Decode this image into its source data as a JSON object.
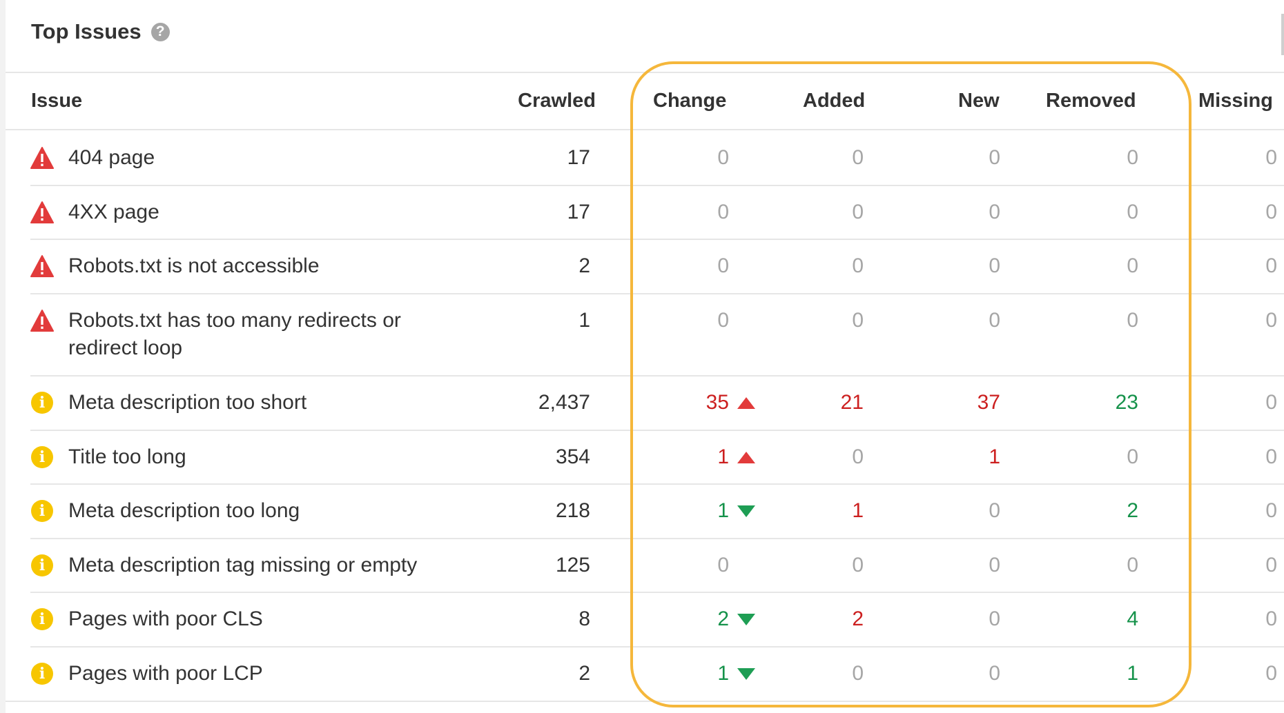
{
  "panel": {
    "title": "Top Issues",
    "help_icon": "help-circle-icon",
    "help_glyph": "?"
  },
  "columns": {
    "issue": "Issue",
    "crawled": "Crawled",
    "change": "Change",
    "added": "Added",
    "new": "New",
    "removed": "Removed",
    "missing": "Missing"
  },
  "rows": [
    {
      "severity": "error",
      "icon": "warning-triangle-icon",
      "issue": "404 page",
      "crawled": "17",
      "change": "0",
      "change_trend": "none",
      "added": "0",
      "new": "0",
      "removed": "0",
      "missing": "0"
    },
    {
      "severity": "error",
      "icon": "warning-triangle-icon",
      "issue": "4XX page",
      "crawled": "17",
      "change": "0",
      "change_trend": "none",
      "added": "0",
      "new": "0",
      "removed": "0",
      "missing": "0"
    },
    {
      "severity": "error",
      "icon": "warning-triangle-icon",
      "issue": "Robots.txt is not accessible",
      "crawled": "2",
      "change": "0",
      "change_trend": "none",
      "added": "0",
      "new": "0",
      "removed": "0",
      "missing": "0"
    },
    {
      "severity": "error",
      "icon": "warning-triangle-icon",
      "issue": "Robots.txt has too many redirects or redirect loop",
      "crawled": "1",
      "change": "0",
      "change_trend": "none",
      "added": "0",
      "new": "0",
      "removed": "0",
      "missing": "0"
    },
    {
      "severity": "notice",
      "icon": "info-circle-icon",
      "issue": "Meta description too short",
      "crawled": "2,437",
      "change": "35",
      "change_trend": "up",
      "added": "21",
      "new": "37",
      "removed": "23",
      "missing": "0"
    },
    {
      "severity": "notice",
      "icon": "info-circle-icon",
      "issue": "Title too long",
      "crawled": "354",
      "change": "1",
      "change_trend": "up",
      "added": "0",
      "new": "1",
      "removed": "0",
      "missing": "0"
    },
    {
      "severity": "notice",
      "icon": "info-circle-icon",
      "issue": "Meta description too long",
      "crawled": "218",
      "change": "1",
      "change_trend": "down",
      "added": "1",
      "new": "0",
      "removed": "2",
      "missing": "0"
    },
    {
      "severity": "notice",
      "icon": "info-circle-icon",
      "issue": "Meta description tag missing or empty",
      "crawled": "125",
      "change": "0",
      "change_trend": "none",
      "added": "0",
      "new": "0",
      "removed": "0",
      "missing": "0"
    },
    {
      "severity": "notice",
      "icon": "info-circle-icon",
      "issue": "Pages with poor CLS",
      "crawled": "8",
      "change": "2",
      "change_trend": "down",
      "added": "2",
      "new": "0",
      "removed": "4",
      "missing": "0"
    },
    {
      "severity": "notice",
      "icon": "info-circle-icon",
      "issue": "Pages with poor LCP",
      "crawled": "2",
      "change": "1",
      "change_trend": "down",
      "added": "0",
      "new": "0",
      "removed": "1",
      "missing": "0"
    }
  ],
  "colors": {
    "negative": "#cc1f1f",
    "positive": "#15924a",
    "neutral": "#a6a6a6",
    "highlight_outline": "#f5b73b",
    "error_icon": "#e23b3b",
    "notice_icon": "#f7c600"
  }
}
